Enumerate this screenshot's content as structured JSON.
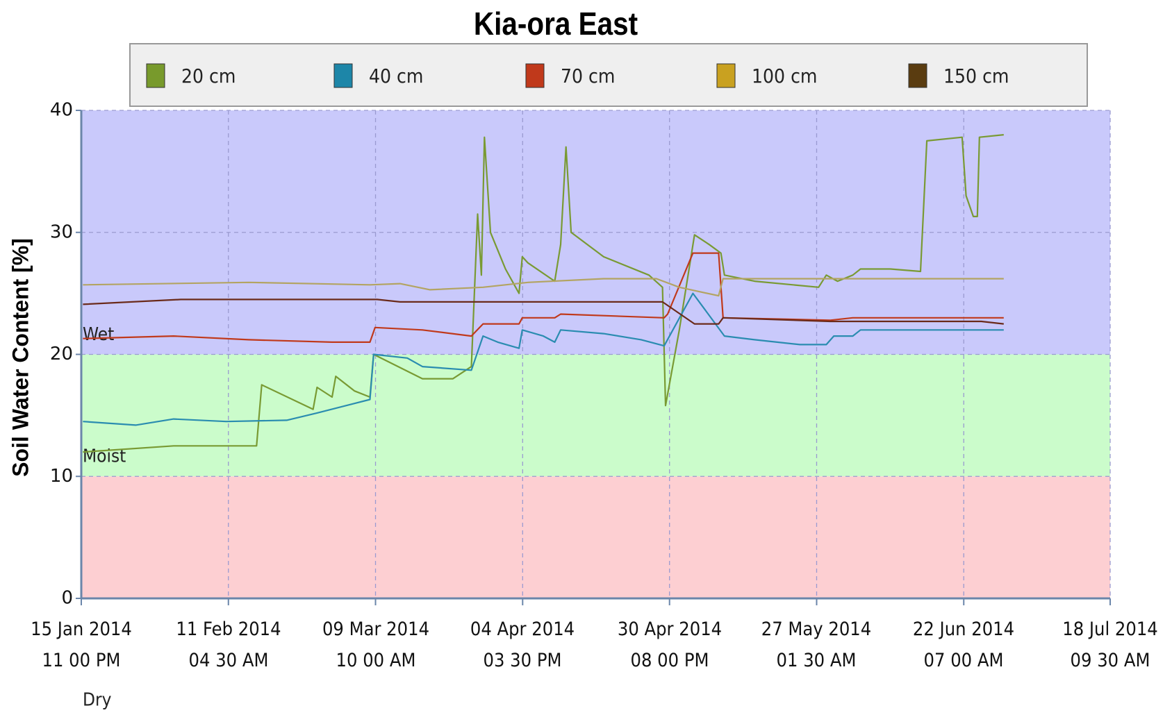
{
  "chart_data": {
    "type": "line",
    "title": "Kia-ora East",
    "y_label": "Soil Water Content [%]",
    "xlim": [
      "2014-01-15 23:00",
      "2014-07-18 09:30"
    ],
    "xticks": [
      {
        "value": "2014-01-15 23:00",
        "label": "15 Jan 2014\n11 00 PM"
      },
      {
        "value": "2014-02-11 04:30",
        "label": "11 Feb 2014\n04 30 AM"
      },
      {
        "value": "2014-03-09 10:00",
        "label": "09 Mar 2014\n10 00 AM"
      },
      {
        "value": "2014-04-04 15:30",
        "label": "04 Apr 2014\n03 30 PM"
      },
      {
        "value": "2014-04-30 20:00",
        "label": "30 Apr 2014\n08 00 PM"
      },
      {
        "value": "2014-05-27 01:30",
        "label": "27 May 2014\n01 30 AM"
      },
      {
        "value": "2014-06-22 07:00",
        "label": "22 Jun 2014\n07 00 AM"
      },
      {
        "value": "2014-07-18 09:30",
        "label": "18 Jul 2014\n09 30 AM"
      }
    ],
    "ylim": [
      0,
      40
    ],
    "yticks": [
      0,
      10,
      20,
      30,
      40
    ],
    "grid": true,
    "bands": [
      {
        "label": "Wet",
        "from": 20,
        "to": 40,
        "color": "#c9c9fb"
      },
      {
        "label": "Moist",
        "from": 10,
        "to": 20,
        "color": "#cbfccb"
      },
      {
        "label": "Dry",
        "from": 0,
        "to": 10,
        "color": "#fdcfd2"
      }
    ],
    "series": [
      {
        "name": "20 cm",
        "color": "#799a33",
        "x": [
          "2014-01-16 06:00",
          "2014-02-01 10:00",
          "2014-02-16 05:00",
          "2014-02-17 03:00",
          "2014-02-26 07:00",
          "2014-02-27 00:00",
          "2014-03-01 16:00",
          "2014-03-02 08:00",
          "2014-03-05 16:00",
          "2014-03-08 10:00",
          "2014-03-09 02:00",
          "2014-03-17 19:00",
          "2014-03-23 05:00",
          "2014-03-26 12:00",
          "2014-03-27 15:00",
          "2014-03-28 07:00",
          "2014-03-28 20:00",
          "2014-03-29 22:00",
          "2014-04-01 14:00",
          "2014-04-04 00:00",
          "2014-04-04 14:00",
          "2014-04-05 14:00",
          "2014-04-10 09:00",
          "2014-04-11 10:00",
          "2014-04-12 09:00",
          "2014-04-13 07:00",
          "2014-04-19 02:00",
          "2014-04-27 04:00",
          "2014-04-29 14:00",
          "2014-04-30 03:00",
          "2014-05-02 14:00",
          "2014-05-05 07:00",
          "2014-05-07 22:00",
          "2014-05-10 00:00",
          "2014-05-10 15:00",
          "2014-05-16 00:00",
          "2014-05-27 10:00",
          "2014-05-28 19:00",
          "2014-05-30 19:00",
          "2014-06-02 12:00",
          "2014-06-03 21:00",
          "2014-06-09 05:00",
          "2014-06-14 14:00",
          "2014-06-15 17:00",
          "2014-06-22 00:00",
          "2014-06-22 17:00",
          "2014-06-24 00:00",
          "2014-06-24 17:00",
          "2014-06-25 02:00",
          "2014-06-29 10:00"
        ],
        "values": [
          12.0,
          12.5,
          12.5,
          17.5,
          15.5,
          17.3,
          16.5,
          18.2,
          17.0,
          16.5,
          20.0,
          18.0,
          18.0,
          19.0,
          31.5,
          26.5,
          37.8,
          30.0,
          27.0,
          25.0,
          28.0,
          27.5,
          26.0,
          29.0,
          37.0,
          30.0,
          28.0,
          26.5,
          25.5,
          15.8,
          22.0,
          29.8,
          29.0,
          28.3,
          26.5,
          26.0,
          25.5,
          26.5,
          26.0,
          26.5,
          27.0,
          27.0,
          26.8,
          37.5,
          37.8,
          33.0,
          31.3,
          31.3,
          37.8,
          38.0
        ]
      },
      {
        "name": "40 cm",
        "color": "#2a8cb0",
        "x": [
          "2014-01-16 06:00",
          "2014-01-25 16:00",
          "2014-02-01 10:00",
          "2014-02-10 19:00",
          "2014-02-21 14:00",
          "2014-02-27 00:00",
          "2014-03-08 10:00",
          "2014-03-09 02:00",
          "2014-03-15 02:00",
          "2014-03-17 19:00",
          "2014-03-26 12:00",
          "2014-03-28 14:00",
          "2014-03-31 05:00",
          "2014-04-04 00:00",
          "2014-04-04 14:00",
          "2014-04-08 08:00",
          "2014-04-10 09:00",
          "2014-04-11 10:00",
          "2014-04-19 02:00",
          "2014-04-25 19:00",
          "2014-04-29 21:00",
          "2014-05-05 00:00",
          "2014-05-10 15:00",
          "2014-05-16 00:00",
          "2014-05-24 02:00",
          "2014-05-28 19:00",
          "2014-05-30 03:00",
          "2014-06-02 12:00",
          "2014-06-03 21:00",
          "2014-06-29 10:00"
        ],
        "values": [
          14.5,
          14.2,
          14.7,
          14.5,
          14.6,
          15.2,
          16.3,
          20.0,
          19.7,
          19.0,
          18.7,
          21.5,
          21.0,
          20.5,
          22.0,
          21.5,
          21.0,
          22.0,
          21.7,
          21.2,
          20.7,
          25.0,
          21.5,
          21.2,
          20.8,
          20.8,
          21.5,
          21.5,
          22.0,
          22.0
        ]
      },
      {
        "name": "70 cm",
        "color": "#c0391b",
        "x": [
          "2014-01-16 06:00",
          "2014-02-01 10:00",
          "2014-02-14 19:00",
          "2014-03-01 16:00",
          "2014-03-08 10:00",
          "2014-03-09 08:00",
          "2014-03-17 19:00",
          "2014-03-26 12:00",
          "2014-03-28 14:00",
          "2014-04-04 00:00",
          "2014-04-04 14:00",
          "2014-04-10 09:00",
          "2014-04-11 10:00",
          "2014-04-29 21:00",
          "2014-04-30 12:00",
          "2014-05-05 00:00",
          "2014-05-09 14:00",
          "2014-05-10 09:00",
          "2014-05-29 12:00",
          "2014-06-02 12:00",
          "2014-06-29 10:00"
        ],
        "values": [
          21.3,
          21.5,
          21.2,
          21.0,
          21.0,
          22.2,
          22.0,
          21.5,
          22.5,
          22.5,
          23.0,
          23.0,
          23.3,
          23.0,
          23.3,
          28.3,
          28.3,
          23.0,
          22.8,
          23.0,
          23.0
        ]
      },
      {
        "name": "100 cm",
        "color": "#b3a462",
        "x": [
          "2014-01-16 06:00",
          "2014-02-14 19:00",
          "2014-03-08 10:00",
          "2014-03-13 19:00",
          "2014-03-19 03:00",
          "2014-03-28 14:00",
          "2014-04-05 14:00",
          "2014-04-19 02:00",
          "2014-04-28 12:00",
          "2014-05-02 14:00",
          "2014-05-09 14:00",
          "2014-05-10 09:00",
          "2014-06-29 10:00"
        ],
        "values": [
          25.7,
          25.9,
          25.7,
          25.8,
          25.3,
          25.5,
          25.9,
          26.2,
          26.2,
          25.5,
          24.8,
          26.2,
          26.2
        ]
      },
      {
        "name": "150 cm",
        "color": "#6a2a1a",
        "x": [
          "2014-01-16 06:00",
          "2014-02-02 17:00",
          "2014-03-09 17:00",
          "2014-03-13 19:00",
          "2014-04-29 14:00",
          "2014-05-05 07:00",
          "2014-05-09 14:00",
          "2014-05-10 09:00",
          "2014-05-29 12:00",
          "2014-06-25 10:00",
          "2014-06-29 10:00"
        ],
        "values": [
          24.1,
          24.5,
          24.5,
          24.3,
          24.3,
          22.5,
          22.5,
          23.0,
          22.7,
          22.7,
          22.5
        ]
      }
    ],
    "legend_swatches": [
      "#789a2c",
      "#1d86a8",
      "#c0391b",
      "#c9a120",
      "#5a3c10"
    ]
  }
}
